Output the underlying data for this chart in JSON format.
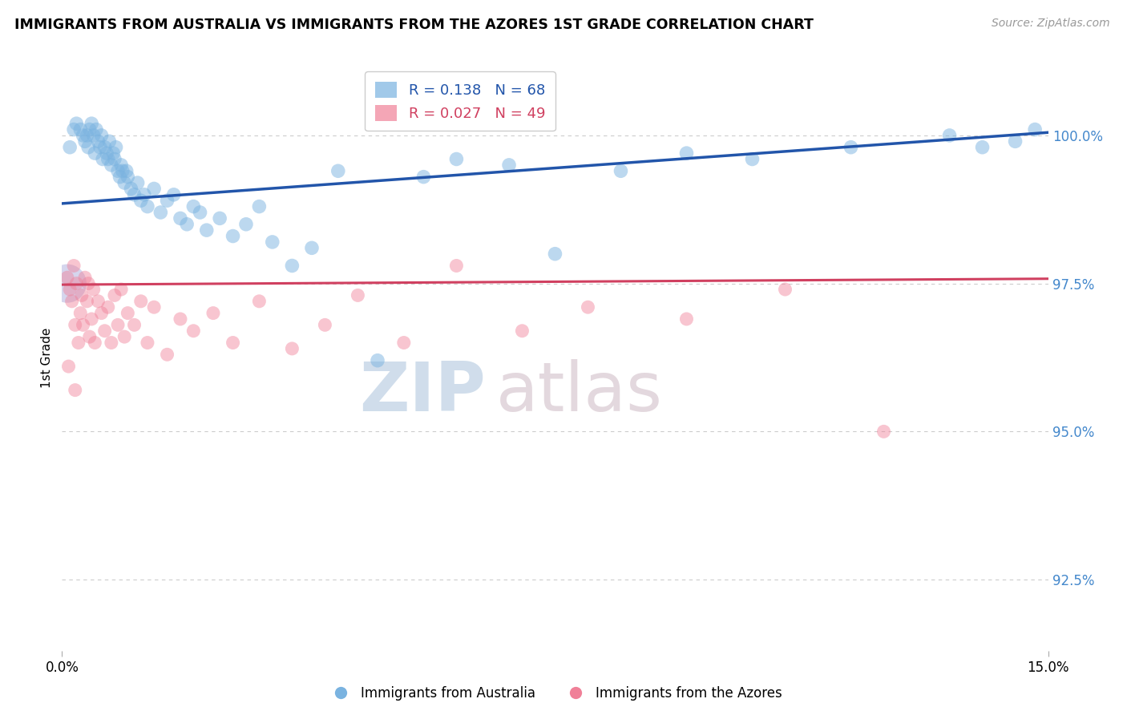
{
  "title": "IMMIGRANTS FROM AUSTRALIA VS IMMIGRANTS FROM THE AZORES 1ST GRADE CORRELATION CHART",
  "source": "Source: ZipAtlas.com",
  "ylabel": "1st Grade",
  "xlim": [
    0.0,
    15.0
  ],
  "ylim": [
    91.3,
    101.2
  ],
  "yticks": [
    92.5,
    95.0,
    97.5,
    100.0
  ],
  "ytick_labels": [
    "92.5%",
    "95.0%",
    "97.5%",
    "100.0%"
  ],
  "legend_r1": "R = 0.138",
  "legend_n1": "N = 68",
  "legend_r2": "R = 0.027",
  "legend_n2": "N = 49",
  "blue_color": "#7AB3E0",
  "pink_color": "#F08098",
  "trendline_blue": "#2255AA",
  "trendline_pink": "#D04060",
  "watermark_zip": "ZIP",
  "watermark_atlas": "atlas",
  "blue_label": "Immigrants from Australia",
  "pink_label": "Immigrants from the Azores",
  "blue_line_x0": 0.0,
  "blue_line_y0": 98.85,
  "blue_line_x1": 15.0,
  "blue_line_y1": 100.05,
  "pink_line_x0": 0.0,
  "pink_line_y0": 97.48,
  "pink_line_x1": 15.0,
  "pink_line_y1": 97.58,
  "blue_x": [
    0.12,
    0.18,
    0.22,
    0.28,
    0.32,
    0.35,
    0.38,
    0.4,
    0.42,
    0.45,
    0.48,
    0.5,
    0.52,
    0.55,
    0.58,
    0.6,
    0.62,
    0.65,
    0.68,
    0.7,
    0.72,
    0.75,
    0.78,
    0.8,
    0.82,
    0.85,
    0.88,
    0.9,
    0.92,
    0.95,
    0.98,
    1.0,
    1.05,
    1.1,
    1.15,
    1.2,
    1.25,
    1.3,
    1.4,
    1.5,
    1.6,
    1.7,
    1.8,
    1.9,
    2.0,
    2.1,
    2.2,
    2.4,
    2.6,
    2.8,
    3.0,
    3.2,
    3.5,
    3.8,
    4.2,
    4.8,
    5.5,
    6.0,
    6.8,
    7.5,
    8.5,
    9.5,
    10.5,
    12.0,
    13.5,
    14.0,
    14.5,
    14.8
  ],
  "blue_y": [
    99.8,
    100.1,
    100.2,
    100.1,
    100.0,
    99.9,
    100.0,
    99.8,
    100.1,
    100.2,
    100.0,
    99.7,
    100.1,
    99.9,
    99.8,
    100.0,
    99.6,
    99.8,
    99.7,
    99.6,
    99.9,
    99.5,
    99.7,
    99.6,
    99.8,
    99.4,
    99.3,
    99.5,
    99.4,
    99.2,
    99.4,
    99.3,
    99.1,
    99.0,
    99.2,
    98.9,
    99.0,
    98.8,
    99.1,
    98.7,
    98.9,
    99.0,
    98.6,
    98.5,
    98.8,
    98.7,
    98.4,
    98.6,
    98.3,
    98.5,
    98.8,
    98.2,
    97.8,
    98.1,
    99.4,
    96.2,
    99.3,
    99.6,
    99.5,
    98.0,
    99.4,
    99.7,
    99.6,
    99.8,
    100.0,
    99.8,
    99.9,
    100.1
  ],
  "pink_x": [
    0.08,
    0.12,
    0.15,
    0.18,
    0.2,
    0.22,
    0.25,
    0.28,
    0.3,
    0.32,
    0.35,
    0.38,
    0.4,
    0.42,
    0.45,
    0.48,
    0.5,
    0.55,
    0.6,
    0.65,
    0.7,
    0.75,
    0.8,
    0.85,
    0.9,
    0.95,
    1.0,
    1.1,
    1.2,
    1.3,
    1.4,
    1.6,
    1.8,
    2.0,
    2.3,
    2.6,
    3.0,
    3.5,
    4.0,
    4.5,
    5.2,
    6.0,
    7.0,
    8.0,
    9.5,
    11.0,
    12.5,
    0.1,
    0.2
  ],
  "pink_y": [
    97.6,
    97.4,
    97.2,
    97.8,
    96.8,
    97.5,
    96.5,
    97.0,
    97.3,
    96.8,
    97.6,
    97.2,
    97.5,
    96.6,
    96.9,
    97.4,
    96.5,
    97.2,
    97.0,
    96.7,
    97.1,
    96.5,
    97.3,
    96.8,
    97.4,
    96.6,
    97.0,
    96.8,
    97.2,
    96.5,
    97.1,
    96.3,
    96.9,
    96.7,
    97.0,
    96.5,
    97.2,
    96.4,
    96.8,
    97.3,
    96.5,
    97.8,
    96.7,
    97.1,
    96.9,
    97.4,
    95.0,
    96.1,
    95.7
  ],
  "big_dot_x": 0.08,
  "big_dot_y": 97.5
}
